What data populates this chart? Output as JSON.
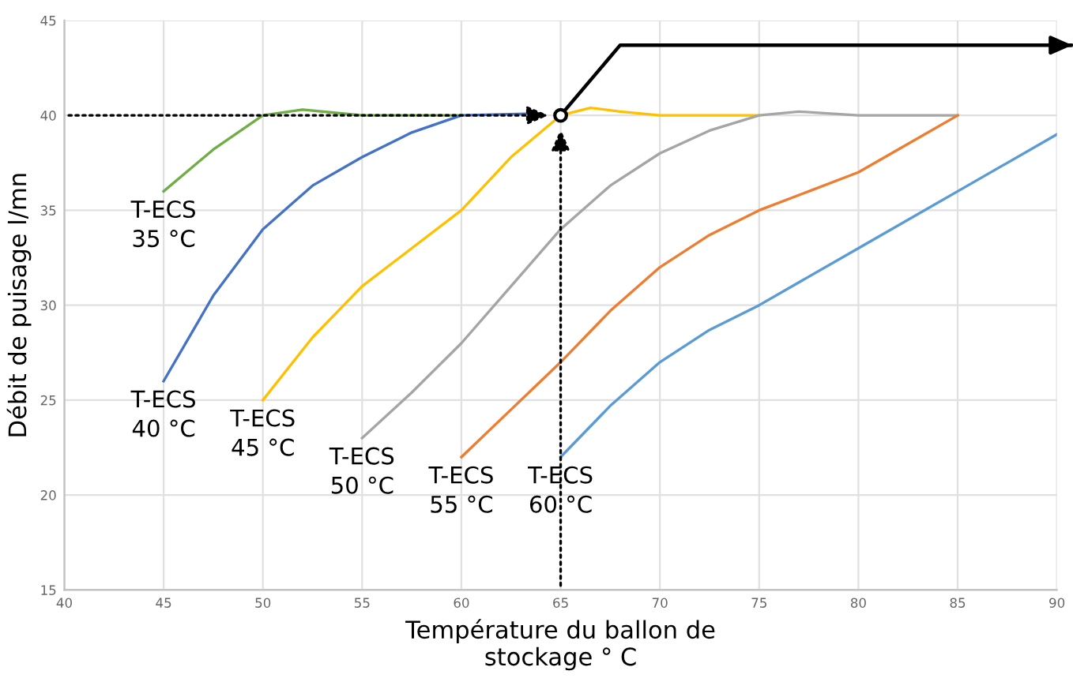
{
  "chart_data": {
    "type": "line",
    "xlabel": "Température du ballon de\nstockage ° C",
    "ylabel": "Débit de puisage l/mn",
    "xlim": [
      40,
      90
    ],
    "ylim": [
      15,
      45
    ],
    "xticks": [
      40,
      45,
      50,
      55,
      60,
      65,
      70,
      75,
      80,
      85,
      90
    ],
    "yticks": [
      15,
      20,
      25,
      30,
      35,
      40,
      45
    ],
    "grid": true,
    "legend": false,
    "marker": "none",
    "line_style": "solid",
    "series": [
      {
        "name": "T-ECS\n35 °C",
        "color": "#70ad47",
        "x": [
          45,
          47.5,
          50,
          52,
          54,
          55,
          60
        ],
        "values": [
          36,
          38.2,
          40,
          40.3,
          40.1,
          40,
          40
        ]
      },
      {
        "name": "T-ECS\n40 °C",
        "color": "#4472c4",
        "x": [
          45,
          47.5,
          50,
          52.5,
          55,
          57.5,
          60,
          64
        ],
        "values": [
          26,
          30.5,
          34,
          36.3,
          37.8,
          39.1,
          40,
          40.1
        ]
      },
      {
        "name": "T-ECS\n45 °C",
        "color": "#ffc000",
        "x": [
          50,
          52.5,
          55,
          57.5,
          60,
          62.5,
          65,
          66.5,
          68,
          70,
          75
        ],
        "values": [
          25,
          28.3,
          31,
          33,
          35,
          37.8,
          40,
          40.4,
          40.2,
          40,
          40
        ]
      },
      {
        "name": "T-ECS\n50 °C",
        "color": "#a5a5a5",
        "x": [
          55,
          57.5,
          60,
          62.5,
          65,
          67.5,
          70,
          72.5,
          75,
          77,
          80,
          85
        ],
        "values": [
          23,
          25.4,
          28,
          31,
          34,
          36.3,
          38,
          39.2,
          40,
          40.2,
          40,
          40
        ]
      },
      {
        "name": "T-ECS\n55 °C",
        "color": "#ed7d31",
        "x": [
          60,
          62.5,
          65,
          67.5,
          70,
          72.5,
          75,
          77.5,
          80,
          82.5,
          85
        ],
        "values": [
          22,
          24.5,
          27,
          29.7,
          32,
          33.7,
          35,
          36,
          37,
          38.5,
          40
        ]
      },
      {
        "name": "T-ECS\n60 °C",
        "color": "#5b9bd5",
        "x": [
          65,
          67.5,
          70,
          72.5,
          75,
          80,
          85,
          90
        ],
        "values": [
          22,
          24.7,
          27,
          28.7,
          30,
          33,
          36,
          39
        ]
      },
      {
        "type": "scatter",
        "marker": "circle",
        "color": "#000000",
        "x": [
          65
        ],
        "values": [
          40
        ]
      }
    ]
  }
}
